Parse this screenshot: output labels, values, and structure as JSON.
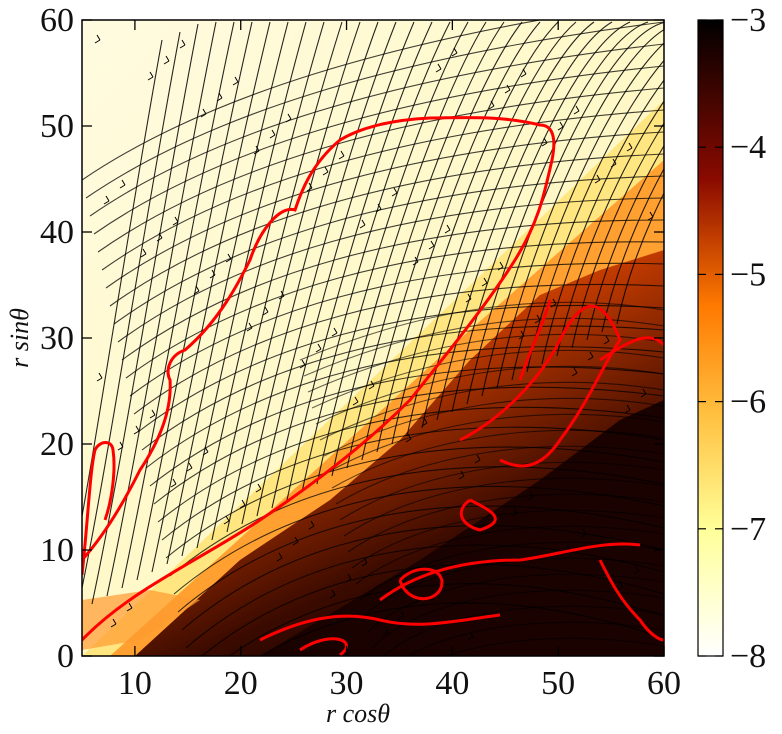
{
  "chart_data": {
    "type": "heatmap",
    "title": "",
    "xlabel": "r cosθ",
    "ylabel": "r sinθ",
    "xlim": [
      5,
      60
    ],
    "ylim": [
      0,
      60
    ],
    "x_ticks": [
      10,
      20,
      30,
      40,
      50,
      60
    ],
    "y_ticks": [
      0,
      10,
      20,
      30,
      40,
      50,
      60
    ],
    "overlays": [
      "streamlines",
      "red contour lines"
    ],
    "colorbar": {
      "colormap": "afmhot_r",
      "range": [
        -8,
        -3
      ],
      "ticks": [
        "−3",
        "−4",
        "−5",
        "−6",
        "−7",
        "−8"
      ],
      "tick_values": [
        -3,
        -4,
        -5,
        -6,
        -7,
        -8
      ]
    },
    "regions": [
      {
        "description_value": "jet/outflow region (low values)",
        "approx_value": -7.8
      },
      {
        "description_value": "disk region near midplane (high values)",
        "approx_value": -3.2
      }
    ],
    "boundary_line_color": "#ff0000",
    "streamline_color": "#000000"
  }
}
